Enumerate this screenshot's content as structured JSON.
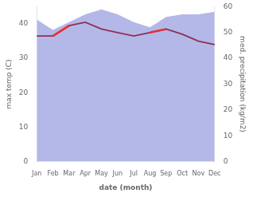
{
  "chart_data": {
    "type": "line",
    "xlabel": "date (month)",
    "ylabel": "max temp (C)",
    "y2label": "med. precipitation (kg/m2)",
    "categories": [
      "Jan",
      "Feb",
      "Mar",
      "Apr",
      "May",
      "Jun",
      "Jul",
      "Aug",
      "Sep",
      "Oct",
      "Nov",
      "Dec"
    ],
    "series": [
      {
        "type": "area",
        "axis": "y2",
        "color": "#b3b8e8",
        "values": [
          55,
          51,
          54,
          57,
          59,
          57,
          54,
          52,
          56,
          57,
          57,
          58
        ]
      },
      {
        "type": "line",
        "color": "#903050",
        "values": [
          36.5,
          36.5,
          39.5,
          40.5,
          38.5,
          37.5,
          36.5,
          37.5,
          38.5,
          37.0,
          35.0,
          34.0
        ]
      },
      {
        "type": "line",
        "color": "#e83030",
        "values": [
          null,
          36.5,
          39.5,
          null,
          null,
          null,
          null,
          37.5,
          38.5,
          null,
          null,
          null
        ]
      }
    ],
    "ylim": [
      0,
      45
    ],
    "yticks": [
      0,
      10,
      20,
      30,
      40
    ],
    "y2lim": [
      0,
      60
    ],
    "y2ticks": [
      0,
      10,
      20,
      30,
      40,
      50,
      60
    ],
    "grid": false
  }
}
